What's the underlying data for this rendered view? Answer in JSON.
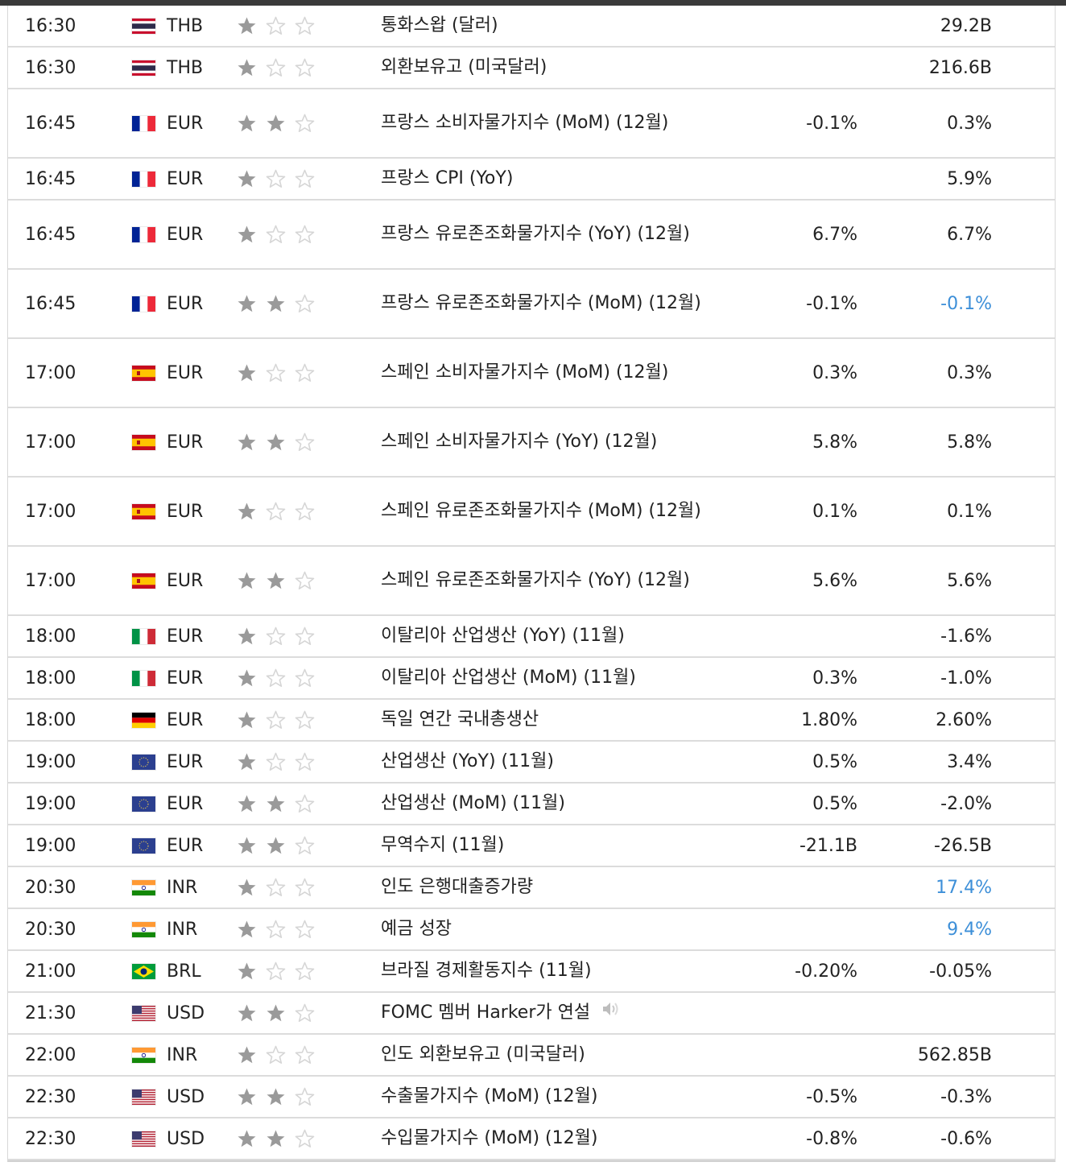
{
  "rows": [
    {
      "time": "16:30",
      "flag": "th-flag-icon",
      "currency": "THB",
      "stars": 1,
      "event": "통화스왑 (달러)",
      "forecast": "",
      "previous": "29.2B",
      "tall": false
    },
    {
      "time": "16:30",
      "flag": "th-flag-icon",
      "currency": "THB",
      "stars": 1,
      "event": "외환보유고 (미국달러)",
      "forecast": "",
      "previous": "216.6B",
      "tall": false
    },
    {
      "time": "16:45",
      "flag": "fr-flag-icon",
      "currency": "EUR",
      "stars": 2,
      "event": "프랑스 소비자물가지수 (MoM) (12월)",
      "forecast": "-0.1%",
      "previous": "0.3%",
      "tall": true
    },
    {
      "time": "16:45",
      "flag": "fr-flag-icon",
      "currency": "EUR",
      "stars": 1,
      "event": "프랑스 CPI (YoY)",
      "forecast": "",
      "previous": "5.9%",
      "tall": false
    },
    {
      "time": "16:45",
      "flag": "fr-flag-icon",
      "currency": "EUR",
      "stars": 1,
      "event": "프랑스 유로존조화물가지수 (YoY) (12월)",
      "forecast": "6.7%",
      "previous": "6.7%",
      "tall": true
    },
    {
      "time": "16:45",
      "flag": "fr-flag-icon",
      "currency": "EUR",
      "stars": 2,
      "event": "프랑스 유로존조화물가지수 (MoM) (12월)",
      "forecast": "-0.1%",
      "previous": "-0.1%",
      "previous_blue": true,
      "tall": true
    },
    {
      "time": "17:00",
      "flag": "es-flag-icon",
      "currency": "EUR",
      "stars": 1,
      "event": "스페인 소비자물가지수 (MoM) (12월)",
      "forecast": "0.3%",
      "previous": "0.3%",
      "tall": true
    },
    {
      "time": "17:00",
      "flag": "es-flag-icon",
      "currency": "EUR",
      "stars": 2,
      "event": "스페인 소비자물가지수 (YoY) (12월)",
      "forecast": "5.8%",
      "previous": "5.8%",
      "tall": true
    },
    {
      "time": "17:00",
      "flag": "es-flag-icon",
      "currency": "EUR",
      "stars": 1,
      "event": "스페인 유로존조화물가지수 (MoM) (12월)",
      "forecast": "0.1%",
      "previous": "0.1%",
      "tall": true
    },
    {
      "time": "17:00",
      "flag": "es-flag-icon",
      "currency": "EUR",
      "stars": 2,
      "event": "스페인 유로존조화물가지수 (YoY) (12월)",
      "forecast": "5.6%",
      "previous": "5.6%",
      "tall": true
    },
    {
      "time": "18:00",
      "flag": "it-flag-icon",
      "currency": "EUR",
      "stars": 1,
      "event": "이탈리아 산업생산 (YoY) (11월)",
      "forecast": "",
      "previous": "-1.6%",
      "tall": false
    },
    {
      "time": "18:00",
      "flag": "it-flag-icon",
      "currency": "EUR",
      "stars": 1,
      "event": "이탈리아 산업생산 (MoM) (11월)",
      "forecast": "0.3%",
      "previous": "-1.0%",
      "tall": false
    },
    {
      "time": "18:00",
      "flag": "de-flag-icon",
      "currency": "EUR",
      "stars": 1,
      "event": "독일 연간 국내총생산",
      "forecast": "1.80%",
      "previous": "2.60%",
      "tall": false
    },
    {
      "time": "19:00",
      "flag": "eu-flag-icon",
      "currency": "EUR",
      "stars": 1,
      "event": "산업생산 (YoY) (11월)",
      "forecast": "0.5%",
      "previous": "3.4%",
      "tall": false
    },
    {
      "time": "19:00",
      "flag": "eu-flag-icon",
      "currency": "EUR",
      "stars": 2,
      "event": "산업생산 (MoM) (11월)",
      "forecast": "0.5%",
      "previous": "-2.0%",
      "tall": false
    },
    {
      "time": "19:00",
      "flag": "eu-flag-icon",
      "currency": "EUR",
      "stars": 2,
      "event": "무역수지 (11월)",
      "forecast": "-21.1B",
      "previous": "-26.5B",
      "tall": false
    },
    {
      "time": "20:30",
      "flag": "in-flag-icon",
      "currency": "INR",
      "stars": 1,
      "event": "인도 은행대출증가량",
      "forecast": "",
      "previous": "17.4%",
      "previous_blue": true,
      "tall": false
    },
    {
      "time": "20:30",
      "flag": "in-flag-icon",
      "currency": "INR",
      "stars": 1,
      "event": "예금 성장",
      "forecast": "",
      "previous": "9.4%",
      "previous_blue": true,
      "tall": false
    },
    {
      "time": "21:00",
      "flag": "br-flag-icon",
      "currency": "BRL",
      "stars": 1,
      "event": "브라질 경제활동지수 (11월)",
      "forecast": "-0.20%",
      "previous": "-0.05%",
      "tall": false
    },
    {
      "time": "21:30",
      "flag": "us-flag-icon",
      "currency": "USD",
      "stars": 2,
      "event": "FOMC 멤버 Harker가 연설",
      "forecast": "",
      "previous": "",
      "speech": true,
      "tall": false
    },
    {
      "time": "22:00",
      "flag": "in-flag-icon",
      "currency": "INR",
      "stars": 1,
      "event": "인도 외환보유고 (미국달러)",
      "forecast": "",
      "previous": "562.85B",
      "tall": false
    },
    {
      "time": "22:30",
      "flag": "us-flag-icon",
      "currency": "USD",
      "stars": 2,
      "event": "수출물가지수 (MoM) (12월)",
      "forecast": "-0.5%",
      "previous": "-0.3%",
      "tall": false
    },
    {
      "time": "22:30",
      "flag": "us-flag-icon",
      "currency": "USD",
      "stars": 2,
      "event": "수입물가지수 (MoM) (12월)",
      "forecast": "-0.8%",
      "previous": "-0.6%",
      "tall": false
    }
  ],
  "colors": {
    "star_on": "#9a9a9a",
    "star_off": "#d6d6d6",
    "blue_value": "#3d8fd8"
  }
}
